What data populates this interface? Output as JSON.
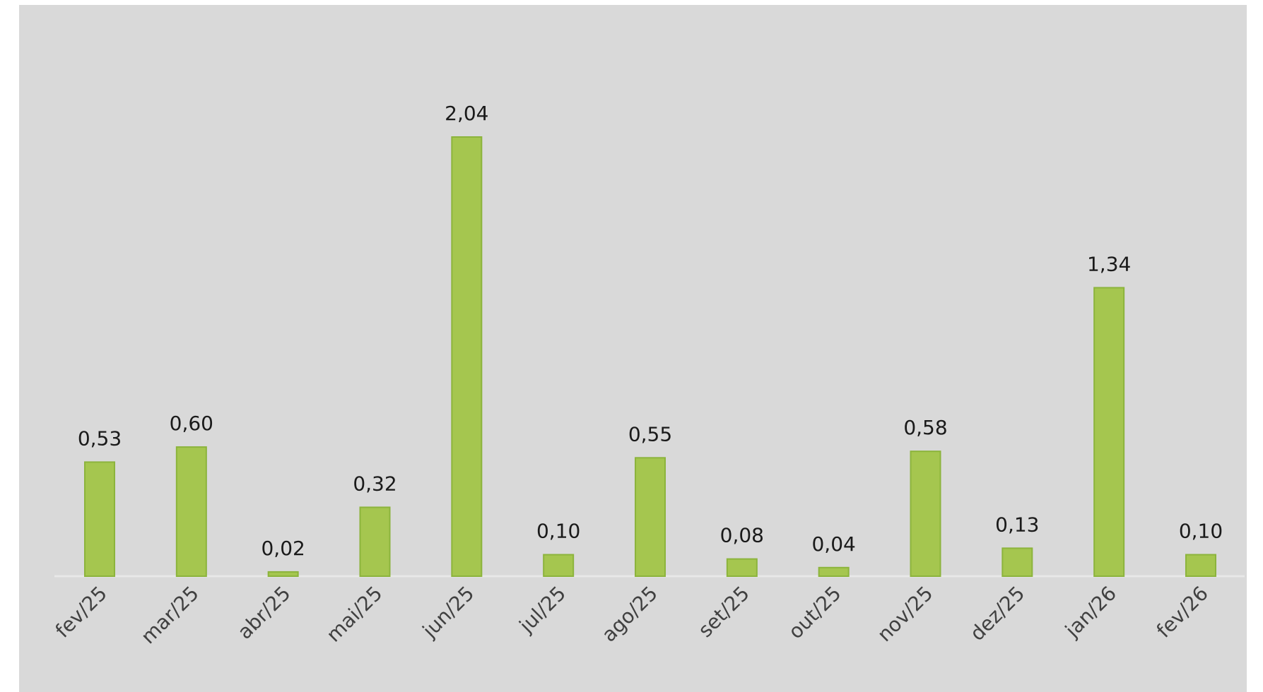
{
  "chart_data": {
    "type": "bar",
    "categories": [
      "fev/25",
      "mar/25",
      "abr/25",
      "mai/25",
      "jun/25",
      "jul/25",
      "ago/25",
      "set/25",
      "out/25",
      "nov/25",
      "dez/25",
      "jan/26",
      "fev/26"
    ],
    "values": [
      0.53,
      0.6,
      0.02,
      0.32,
      2.04,
      0.1,
      0.55,
      0.08,
      0.04,
      0.58,
      0.13,
      1.34,
      0.1
    ],
    "value_labels": [
      "0,53",
      "0,60",
      "0,02",
      "0,32",
      "2,04",
      "0,10",
      "0,55",
      "0,08",
      "0,04",
      "0,58",
      "0,13",
      "1,34",
      "0,10"
    ],
    "color": "#a5c64f"
  }
}
